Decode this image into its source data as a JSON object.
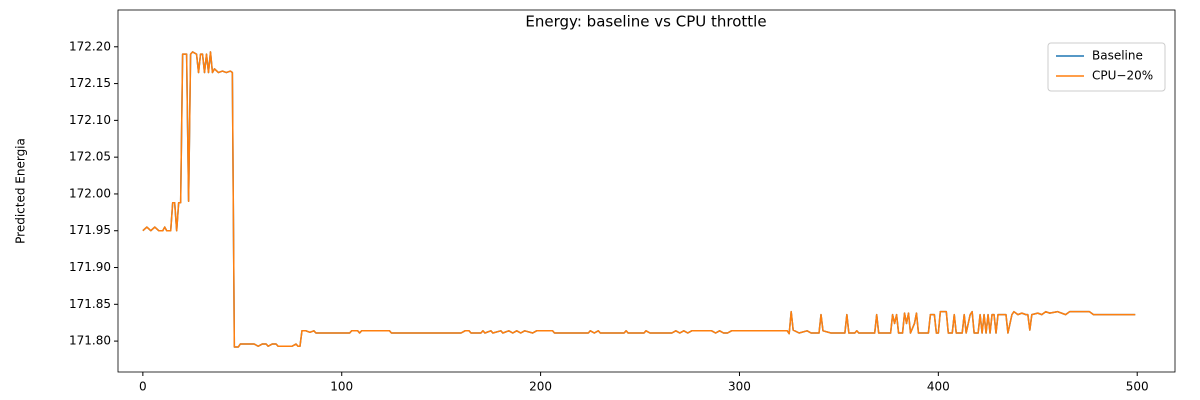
{
  "chart_data": {
    "type": "line",
    "title": "Energy: baseline vs CPU throttle",
    "y_label": "Predicted Energia",
    "x": [
      0,
      2,
      4,
      6,
      8,
      10,
      11,
      12,
      14,
      15,
      16,
      17,
      18,
      19,
      20,
      22,
      23,
      24,
      25,
      27,
      28,
      29,
      30,
      31,
      32,
      33,
      34,
      35,
      36,
      38,
      40,
      42,
      44,
      45,
      46,
      48,
      49,
      56,
      58,
      60,
      62,
      63,
      65,
      67,
      68,
      70,
      72,
      75,
      77,
      78,
      79,
      80,
      82,
      84,
      86,
      87,
      90,
      104,
      105,
      108,
      109,
      110,
      124,
      125,
      160,
      162,
      164,
      165,
      170,
      171,
      172,
      175,
      176,
      180,
      181,
      184,
      186,
      188,
      190,
      192,
      196,
      198,
      206,
      207,
      224,
      225,
      227,
      229,
      230,
      242,
      243,
      244,
      252,
      253,
      255,
      266,
      268,
      270,
      272,
      274,
      276,
      286,
      288,
      290,
      292,
      294,
      296,
      324,
      325,
      326,
      327,
      330,
      334,
      336,
      340,
      341,
      342,
      346,
      353,
      354,
      355,
      358,
      359,
      360,
      368,
      369,
      370,
      376,
      377,
      378,
      379,
      380,
      382,
      383,
      384,
      385,
      386,
      388,
      389,
      390,
      395,
      396,
      398,
      399,
      400,
      401,
      404,
      405,
      407,
      408,
      409,
      412,
      413,
      414,
      416,
      417,
      418,
      420,
      421,
      422,
      423,
      424,
      425,
      426,
      427,
      428,
      429,
      430,
      434,
      435,
      437,
      438,
      440,
      442,
      444,
      445,
      446,
      447,
      450,
      452,
      454,
      456,
      460,
      464,
      466,
      476,
      478,
      480,
      499
    ],
    "series": [
      {
        "name": "Baseline",
        "color": "#1f77b4",
        "values": [
          171.95,
          171.955,
          171.95,
          171.955,
          171.95,
          171.95,
          171.955,
          171.95,
          171.95,
          171.988,
          171.988,
          171.95,
          171.988,
          171.988,
          172.19,
          172.19,
          171.99,
          172.19,
          172.193,
          172.19,
          172.165,
          172.19,
          172.19,
          172.165,
          172.19,
          172.165,
          172.193,
          172.165,
          172.17,
          172.165,
          172.167,
          172.165,
          172.167,
          172.165,
          171.792,
          171.792,
          171.796,
          171.796,
          171.793,
          171.796,
          171.796,
          171.793,
          171.796,
          171.796,
          171.793,
          171.793,
          171.793,
          171.793,
          171.796,
          171.793,
          171.793,
          171.814,
          171.814,
          171.812,
          171.814,
          171.811,
          171.811,
          171.811,
          171.814,
          171.814,
          171.811,
          171.814,
          171.814,
          171.811,
          171.811,
          171.814,
          171.814,
          171.811,
          171.811,
          171.814,
          171.811,
          171.814,
          171.811,
          171.814,
          171.811,
          171.814,
          171.811,
          171.814,
          171.811,
          171.814,
          171.811,
          171.814,
          171.814,
          171.811,
          171.811,
          171.814,
          171.811,
          171.814,
          171.811,
          171.811,
          171.814,
          171.811,
          171.811,
          171.814,
          171.811,
          171.811,
          171.814,
          171.811,
          171.814,
          171.811,
          171.814,
          171.814,
          171.811,
          171.814,
          171.811,
          171.811,
          171.814,
          171.814,
          171.81,
          171.84,
          171.815,
          171.811,
          171.814,
          171.811,
          171.811,
          171.836,
          171.814,
          171.811,
          171.811,
          171.836,
          171.811,
          171.811,
          171.814,
          171.811,
          171.811,
          171.836,
          171.811,
          171.811,
          171.836,
          171.824,
          171.836,
          171.811,
          171.811,
          171.838,
          171.824,
          171.838,
          171.811,
          171.824,
          171.838,
          171.811,
          171.811,
          171.836,
          171.836,
          171.811,
          171.811,
          171.84,
          171.84,
          171.811,
          171.811,
          171.836,
          171.811,
          171.811,
          171.836,
          171.811,
          171.836,
          171.84,
          171.811,
          171.811,
          171.836,
          171.811,
          171.836,
          171.811,
          171.836,
          171.811,
          171.836,
          171.836,
          171.811,
          171.836,
          171.836,
          171.811,
          171.836,
          171.84,
          171.836,
          171.838,
          171.836,
          171.836,
          171.815,
          171.836,
          171.838,
          171.836,
          171.84,
          171.838,
          171.84,
          171.836,
          171.84,
          171.84,
          171.836,
          171.836,
          171.836
        ]
      },
      {
        "name": "CPU−20%",
        "color": "#ff7f0e",
        "values": [
          171.95,
          171.955,
          171.95,
          171.955,
          171.95,
          171.95,
          171.955,
          171.95,
          171.95,
          171.988,
          171.988,
          171.95,
          171.988,
          171.988,
          172.19,
          172.19,
          171.99,
          172.19,
          172.193,
          172.19,
          172.165,
          172.19,
          172.19,
          172.165,
          172.19,
          172.165,
          172.193,
          172.165,
          172.17,
          172.165,
          172.167,
          172.165,
          172.167,
          172.165,
          171.792,
          171.792,
          171.796,
          171.796,
          171.793,
          171.796,
          171.796,
          171.793,
          171.796,
          171.796,
          171.793,
          171.793,
          171.793,
          171.793,
          171.796,
          171.793,
          171.793,
          171.814,
          171.814,
          171.812,
          171.814,
          171.811,
          171.811,
          171.811,
          171.814,
          171.814,
          171.811,
          171.814,
          171.814,
          171.811,
          171.811,
          171.814,
          171.814,
          171.811,
          171.811,
          171.814,
          171.811,
          171.814,
          171.811,
          171.814,
          171.811,
          171.814,
          171.811,
          171.814,
          171.811,
          171.814,
          171.811,
          171.814,
          171.814,
          171.811,
          171.811,
          171.814,
          171.811,
          171.814,
          171.811,
          171.811,
          171.814,
          171.811,
          171.811,
          171.814,
          171.811,
          171.811,
          171.814,
          171.811,
          171.814,
          171.811,
          171.814,
          171.814,
          171.811,
          171.814,
          171.811,
          171.811,
          171.814,
          171.814,
          171.81,
          171.84,
          171.815,
          171.811,
          171.814,
          171.811,
          171.811,
          171.836,
          171.814,
          171.811,
          171.811,
          171.836,
          171.811,
          171.811,
          171.814,
          171.811,
          171.811,
          171.836,
          171.811,
          171.811,
          171.836,
          171.824,
          171.836,
          171.811,
          171.811,
          171.838,
          171.824,
          171.838,
          171.811,
          171.824,
          171.838,
          171.811,
          171.811,
          171.836,
          171.836,
          171.811,
          171.811,
          171.84,
          171.84,
          171.811,
          171.811,
          171.836,
          171.811,
          171.811,
          171.836,
          171.811,
          171.836,
          171.84,
          171.811,
          171.811,
          171.836,
          171.811,
          171.836,
          171.811,
          171.836,
          171.811,
          171.836,
          171.836,
          171.811,
          171.836,
          171.836,
          171.811,
          171.836,
          171.84,
          171.836,
          171.838,
          171.836,
          171.836,
          171.815,
          171.836,
          171.838,
          171.836,
          171.84,
          171.838,
          171.84,
          171.836,
          171.84,
          171.84,
          171.836,
          171.836,
          171.836
        ]
      }
    ],
    "xlim": [
      -12.5,
      519
    ],
    "ylim": [
      171.758,
      172.25
    ],
    "xticks": [
      0,
      100,
      200,
      300,
      400,
      500
    ],
    "yticks": [
      {
        "value": 171.8,
        "label": "171.80"
      },
      {
        "value": 171.85,
        "label": "171.85"
      },
      {
        "value": 171.9,
        "label": "171.90"
      },
      {
        "value": 171.95,
        "label": "171.95"
      },
      {
        "value": 172.0,
        "label": "172.00"
      },
      {
        "value": 172.05,
        "label": "172.05"
      },
      {
        "value": 172.1,
        "label": "172.10"
      },
      {
        "value": 172.15,
        "label": "172.15"
      },
      {
        "value": 172.2,
        "label": "172.20"
      }
    ],
    "legend": "upper right"
  }
}
